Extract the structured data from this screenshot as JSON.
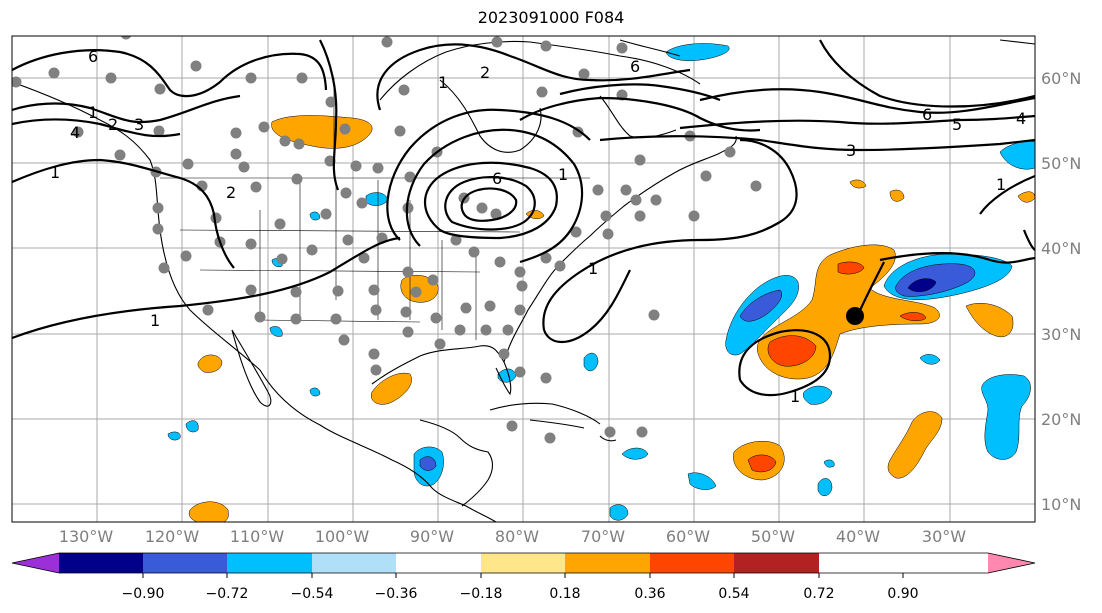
{
  "title": "2023091000 F084",
  "lon_labels": [
    "130°W",
    "120°W",
    "110°W",
    "100°W",
    "90°W",
    "80°W",
    "70°W",
    "60°W",
    "50°W",
    "40°W",
    "30°W"
  ],
  "lat_labels": [
    "60°N",
    "50°N",
    "40°N",
    "30°N",
    "20°N",
    "10°N"
  ],
  "contour_labels": [
    "6",
    "1",
    "2",
    "3",
    "4",
    "1",
    "2",
    "1",
    "1",
    "2",
    "6",
    "6",
    "5",
    "4",
    "3",
    "1",
    "1",
    "1",
    "1",
    "6"
  ],
  "colorbar": {
    "ticks": [
      "−0.90",
      "−0.72",
      "−0.54",
      "−0.36",
      "−0.18",
      "0.18",
      "0.36",
      "0.54",
      "0.72",
      "0.90"
    ],
    "colors": [
      "#9b30d9",
      "#00008b",
      "#3a5bd9",
      "#00bfff",
      "#b0e0f8",
      "#ffffff",
      "#ffe68a",
      "#ffa500",
      "#ff4500",
      "#b22222",
      "#ff88b0"
    ]
  }
}
